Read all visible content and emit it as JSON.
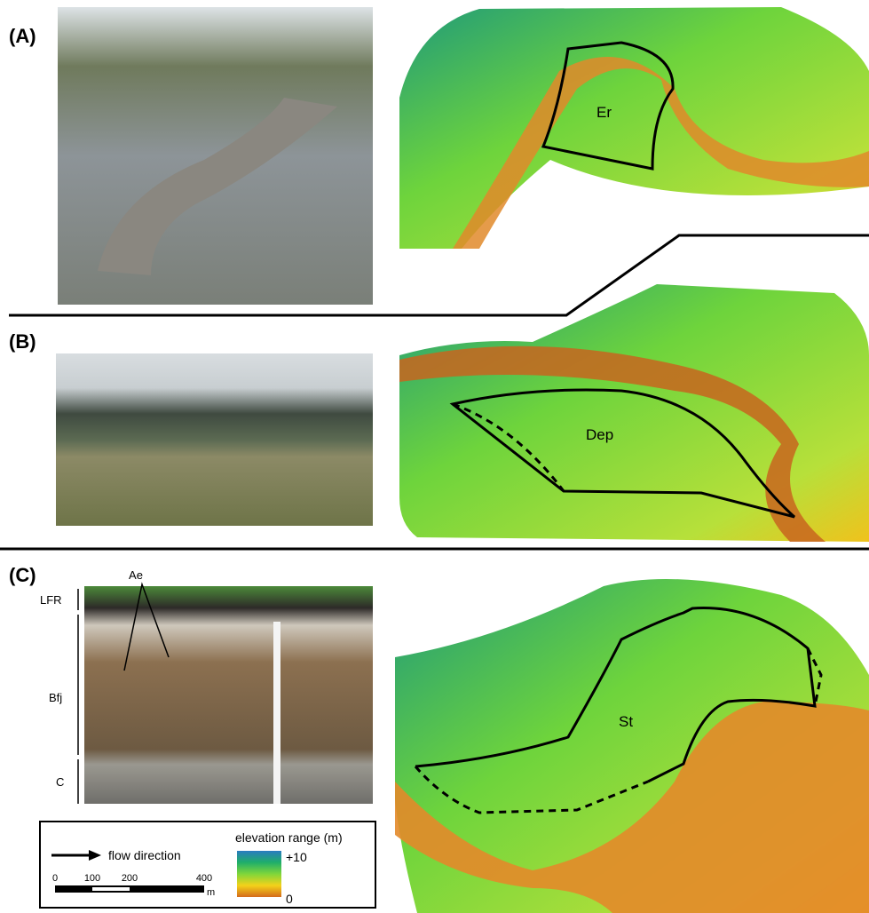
{
  "panels": [
    {
      "label": "(A)",
      "region": "Er"
    },
    {
      "label": "(B)",
      "region": "Dep"
    },
    {
      "label": "(C)",
      "region": "St",
      "horizons": [
        "Ae",
        "LFR",
        "Bfj",
        "C"
      ]
    }
  ],
  "legend": {
    "flow": "flow direction",
    "scale": [
      "0",
      "100",
      "200",
      "400"
    ],
    "scale_unit": "m",
    "elevation_title": "elevation range (m)",
    "elevation_max": "+10",
    "elevation_min": "0"
  }
}
